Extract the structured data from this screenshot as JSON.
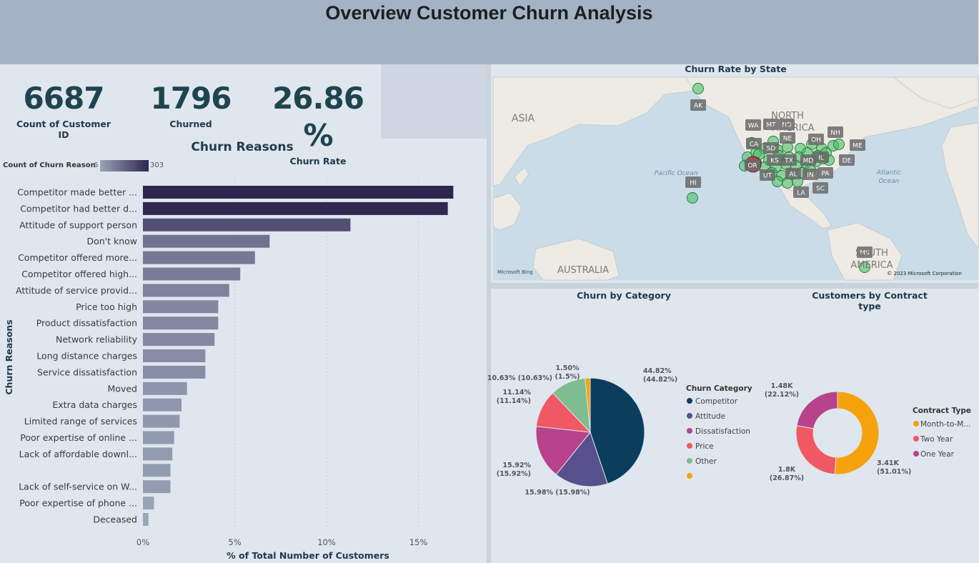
{
  "header": {
    "title": "Overview Customer Churn Analysis"
  },
  "kpis": [
    {
      "value": "6687",
      "label": "Count of Customer ID"
    },
    {
      "value": "1796",
      "label": "Churned"
    },
    {
      "value": "26.86 %",
      "label": "Churn Rate"
    }
  ],
  "colors": {
    "bar_min": "#9aa5b8",
    "bar_max": "#2d254f",
    "competitor": "#0b3d5c",
    "attitude": "#56508c",
    "dissatisfaction": "#b8428c",
    "price": "#f05863",
    "other": "#7dbd8f",
    "blank": "#f6a20c"
  },
  "chart_data": [
    {
      "type": "bar",
      "orientation": "horizontal",
      "title": "Churn Reasons",
      "xlabel": "% of Total Number of Customers",
      "ylabel": "Churn Reasons",
      "legend": {
        "title": "Count of Churn Reason",
        "min": "6",
        "max": "303"
      },
      "x_ticks": [
        "0%",
        "5%",
        "10%",
        "15%"
      ],
      "xlim": [
        0,
        18.5
      ],
      "categories": [
        "Competitor made better ...",
        "Competitor had better d...",
        "Attitude of support person",
        "Don't know",
        "Competitor offered more...",
        "Competitor offered high...",
        "Attitude of service provid...",
        "Price too high",
        "Product dissatisfaction",
        "Network reliability",
        "Long distance charges",
        "Service dissatisfaction",
        "Moved",
        "Extra data charges",
        "Limited range of services",
        "Poor expertise of online ...",
        "Lack of affordable downl...",
        "",
        "Lack of self-service on W...",
        "Poor expertise of phone ...",
        "Deceased"
      ],
      "values": [
        16.9,
        16.6,
        11.3,
        6.9,
        6.1,
        5.3,
        4.7,
        4.1,
        4.1,
        3.9,
        3.4,
        3.4,
        2.4,
        2.1,
        2.0,
        1.7,
        1.6,
        1.5,
        1.5,
        0.6,
        0.3
      ],
      "counts": [
        303,
        297,
        203,
        123,
        109,
        96,
        85,
        74,
        73,
        70,
        61,
        60,
        43,
        38,
        36,
        30,
        29,
        27,
        26,
        11,
        6
      ]
    },
    {
      "type": "map",
      "title": "Churn Rate by State",
      "region_labels": [
        "ASIA",
        "NORTH",
        "AMERICA",
        "SOUTH",
        "AMERICA",
        "AUSTRALIA",
        "Pacific Ocean",
        "Atlantic",
        "Ocean"
      ],
      "state_labels": [
        "AK",
        "HI",
        "WA",
        "MT",
        "ND",
        "CA",
        "SD",
        "NE",
        "OH",
        "NH",
        "ME",
        "KS",
        "TX",
        "MD",
        "IL",
        "DE",
        "OR",
        "UT",
        "AL",
        "IN",
        "PA",
        "SC",
        "LA",
        "MS"
      ],
      "credits": [
        "Microsoft Bing",
        "© 2023 Microsoft Corporation"
      ]
    },
    {
      "type": "pie",
      "title": "Churn by Category",
      "legend_title": "Churn Category",
      "slices": [
        {
          "name": "Competitor",
          "value": 44.82,
          "label": "44.82%",
          "label2": "(44.82%)"
        },
        {
          "name": "Attitude",
          "value": 15.98,
          "label": "15.98% (15.98%)"
        },
        {
          "name": "Dissatisfaction",
          "value": 15.92,
          "label": "15.92%",
          "label2": "(15.92%)"
        },
        {
          "name": "Price",
          "value": 11.14,
          "label": "11.14%",
          "label2": "(11.14%)"
        },
        {
          "name": "Other",
          "value": 10.63,
          "label": "10.63% (10.63%)"
        },
        {
          "name": "",
          "value": 1.5,
          "label": "1.50%",
          "label2": "(1.5%)"
        }
      ]
    },
    {
      "type": "donut",
      "title": "Customers by Contract type",
      "legend_title": "Contract Type",
      "slices": [
        {
          "name": "Month-to-M...",
          "value": 51.01,
          "label": "3.41K",
          "label2": "(51.01%)"
        },
        {
          "name": "Two Year",
          "value": 26.87,
          "label": "1.8K",
          "label2": "(26.87%)"
        },
        {
          "name": "One Year",
          "value": 22.12,
          "label": "1.48K",
          "label2": "(22.12%)"
        }
      ]
    }
  ]
}
